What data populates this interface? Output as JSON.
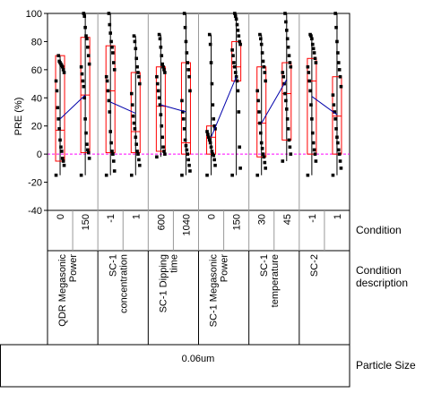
{
  "chart_data": {
    "type": "scatter",
    "ylabel": "PRE (%)",
    "ylim": [
      -40,
      100
    ],
    "yticks": [
      -40,
      -20,
      0,
      20,
      40,
      60,
      80,
      100
    ],
    "reference_line_y": 0,
    "colors": {
      "points": "#000000",
      "box": "#ff0000",
      "whisker": "#000000",
      "mean_line": "#0000aa",
      "zero_line": "#ff00ff",
      "grid": "#999999"
    },
    "table": {
      "row_labels": {
        "condition": "Condition",
        "description": "Condition description",
        "particle_size": "Particle Size"
      },
      "particle_size": "0.06um"
    },
    "groups": [
      {
        "description": "QDR Megasonic Power",
        "conditions": [
          {
            "label": "0",
            "min": -15,
            "q1": -5,
            "median": 17,
            "q3": 70,
            "max": 70,
            "mean": 25,
            "points": [
              -15,
              -8,
              -5,
              -3,
              2,
              5,
              10,
              18,
              25,
              33,
              45,
              52,
              58,
              60,
              62,
              63,
              64,
              65,
              66,
              70
            ]
          },
          {
            "label": "150",
            "min": -15,
            "q1": 1,
            "median": 42,
            "q3": 83,
            "max": 100,
            "mean": 42,
            "points": [
              -15,
              -3,
              1,
              3,
              7,
              15,
              25,
              40,
              48,
              52,
              57,
              62,
              64,
              70,
              76,
              82,
              84,
              90,
              98,
              100
            ]
          }
        ]
      },
      {
        "description": "SC-1 concentration",
        "conditions": [
          {
            "label": "-1",
            "min": -15,
            "q1": 1,
            "median": 45,
            "q3": 77,
            "max": 100,
            "mean": 37,
            "points": [
              -15,
              -12,
              -5,
              0,
              2,
              8,
              16,
              30,
              38,
              45,
              52,
              55,
              60,
              65,
              72,
              76,
              80,
              86,
              92,
              100
            ]
          },
          {
            "label": "1",
            "min": -15,
            "q1": 1,
            "median": 16,
            "q3": 58,
            "max": 84,
            "mean": 29,
            "points": [
              -15,
              -8,
              -4,
              0,
              2,
              7,
              12,
              18,
              22,
              27,
              35,
              43,
              50,
              55,
              58,
              62,
              68,
              75,
              80,
              84
            ]
          }
        ]
      },
      {
        "description": "SC-1 Dipping time",
        "conditions": [
          {
            "label": "600",
            "min": -2,
            "q1": 2,
            "median": 34,
            "q3": 62,
            "max": 85,
            "mean": 35,
            "points": [
              -2,
              0,
              2,
              5,
              12,
              20,
              28,
              35,
              40,
              45,
              50,
              55,
              58,
              60,
              62,
              64,
              70,
              76,
              82,
              85
            ]
          },
          {
            "label": "1040",
            "min": -15,
            "q1": 0,
            "median": 8,
            "q3": 65,
            "max": 100,
            "mean": 30,
            "points": [
              -15,
              -12,
              -8,
              -4,
              0,
              3,
              6,
              10,
              18,
              25,
              30,
              38,
              45,
              55,
              60,
              65,
              72,
              80,
              90,
              100
            ]
          }
        ]
      },
      {
        "description": "SC-1 Megasonic Power",
        "conditions": [
          {
            "label": "0",
            "min": -15,
            "q1": 0,
            "median": 12,
            "q3": 20,
            "max": 85,
            "mean": 12,
            "points": [
              -15,
              -8,
              -4,
              -1,
              0,
              2,
              5,
              8,
              10,
              12,
              14,
              16,
              18,
              20,
              25,
              35,
              50,
              65,
              78,
              85
            ]
          },
          {
            "label": "150",
            "min": -15,
            "q1": 52,
            "median": 62,
            "q3": 80,
            "max": 100,
            "mean": 55,
            "points": [
              -15,
              -10,
              5,
              30,
              45,
              52,
              55,
              58,
              62,
              65,
              70,
              74,
              78,
              80,
              84,
              88,
              92,
              96,
              98,
              100
            ]
          }
        ]
      },
      {
        "description": "SC-1 temperature",
        "conditions": [
          {
            "label": "30",
            "min": -15,
            "q1": -2,
            "median": 22,
            "q3": 62,
            "max": 85,
            "mean": 22,
            "points": [
              -15,
              -10,
              -6,
              -2,
              0,
              4,
              8,
              15,
              22,
              30,
              38,
              45,
              52,
              58,
              62,
              66,
              72,
              78,
              82,
              85
            ]
          },
          {
            "label": "45",
            "min": -5,
            "q1": 10,
            "median": 43,
            "q3": 65,
            "max": 100,
            "mean": 53,
            "points": [
              -5,
              0,
              5,
              10,
              18,
              25,
              32,
              38,
              43,
              50,
              55,
              58,
              62,
              65,
              70,
              76,
              82,
              88,
              94,
              100
            ]
          }
        ]
      },
      {
        "description": "SC-2",
        "conditions": [
          {
            "label": "-1",
            "min": -15,
            "q1": 0,
            "median": 52,
            "q3": 68,
            "max": 85,
            "mean": 41,
            "points": [
              -15,
              -5,
              0,
              3,
              8,
              15,
              25,
              35,
              45,
              52,
              58,
              62,
              65,
              68,
              72,
              75,
              78,
              82,
              84,
              85
            ]
          },
          {
            "label": "1",
            "min": -15,
            "q1": 0,
            "median": 27,
            "q3": 55,
            "max": 100,
            "mean": 28,
            "points": [
              -15,
              -10,
              -5,
              0,
              3,
              8,
              12,
              18,
              25,
              30,
              35,
              42,
              48,
              55,
              60,
              65,
              72,
              80,
              90,
              100
            ]
          }
        ]
      }
    ]
  }
}
